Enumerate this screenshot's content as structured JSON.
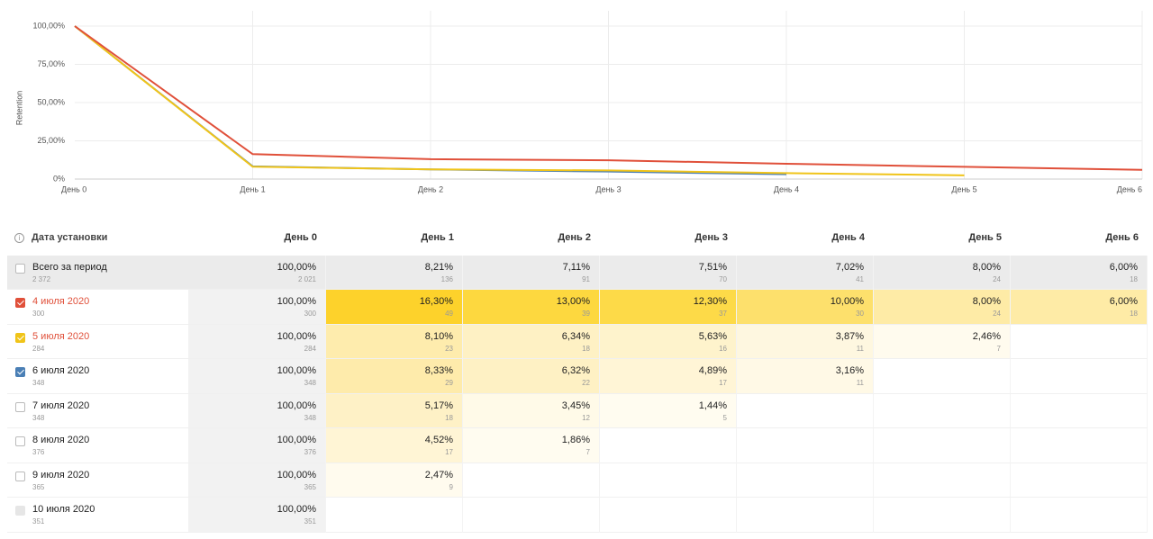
{
  "chart_data": {
    "type": "line",
    "y_label": "Retention",
    "categories": [
      "День 0",
      "День 1",
      "День 2",
      "День 3",
      "День 4",
      "День 5",
      "День 6"
    ],
    "series": [
      {
        "color": "#e0503a",
        "values": [
          100,
          16.3,
          13,
          12.3,
          10,
          8,
          6
        ]
      },
      {
        "color": "#f0c419",
        "values": [
          100,
          8.1,
          6.34,
          5.63,
          3.87,
          2.46,
          null
        ]
      },
      {
        "color": "#4a7fb5",
        "values": [
          100,
          8.33,
          6.32,
          4.89,
          3.16,
          null,
          null
        ]
      }
    ],
    "ylim": [
      0,
      100
    ],
    "yticks": [
      {
        "value": 0,
        "label": "0%"
      },
      {
        "value": 25,
        "label": "25,00%"
      },
      {
        "value": 50,
        "label": "50,00%"
      },
      {
        "value": 75,
        "label": "75,00%"
      },
      {
        "value": 100,
        "label": "100,00%"
      }
    ],
    "grid": true
  },
  "table": {
    "header": "Дата установки",
    "day0_bg": "#f2f2f2",
    "total_bg": "#ebebeb",
    "rows": [
      {
        "label": "Всего за период",
        "count": "2 372",
        "total": true,
        "checked": false,
        "cells": [
          {
            "pct": "100,00%",
            "n": "2 021"
          },
          {
            "pct": "8,21%",
            "n": "136"
          },
          {
            "pct": "7,11%",
            "n": "91"
          },
          {
            "pct": "7,51%",
            "n": "70"
          },
          {
            "pct": "7,02%",
            "n": "41"
          },
          {
            "pct": "8,00%",
            "n": "24"
          },
          {
            "pct": "6,00%",
            "n": "18"
          }
        ]
      },
      {
        "label": "4 июля 2020",
        "count": "300",
        "checked": true,
        "checkbox_color": "#e0503a",
        "label_color": "#e0503a",
        "cells": [
          {
            "pct": "100,00%",
            "n": "300"
          },
          {
            "pct": "16,30%",
            "n": "49",
            "bg": "#fdd22b"
          },
          {
            "pct": "13,00%",
            "n": "39",
            "bg": "#fdd83f"
          },
          {
            "pct": "12,30%",
            "n": "37",
            "bg": "#fdda48"
          },
          {
            "pct": "10,00%",
            "n": "30",
            "bg": "#fde06c"
          },
          {
            "pct": "8,00%",
            "n": "24",
            "bg": "#feeba6"
          },
          {
            "pct": "6,00%",
            "n": "18",
            "bg": "#feeba6"
          }
        ]
      },
      {
        "label": "5 июля 2020",
        "count": "284",
        "checked": true,
        "checkbox_color": "#f0c419",
        "label_color": "#e0503a",
        "cells": [
          {
            "pct": "100,00%",
            "n": "284"
          },
          {
            "pct": "8,10%",
            "n": "23",
            "bg": "#feecad"
          },
          {
            "pct": "6,34%",
            "n": "18",
            "bg": "#fef1c4"
          },
          {
            "pct": "5,63%",
            "n": "16",
            "bg": "#fef3cc"
          },
          {
            "pct": "3,87%",
            "n": "11",
            "bg": "#fef7e0"
          },
          {
            "pct": "2,46%",
            "n": "7",
            "bg": "#fffbee"
          }
        ]
      },
      {
        "label": "6 июля 2020",
        "count": "348",
        "checked": true,
        "checkbox_color": "#4a7fb5",
        "cells": [
          {
            "pct": "100,00%",
            "n": "348"
          },
          {
            "pct": "8,33%",
            "n": "29",
            "bg": "#feebab"
          },
          {
            "pct": "6,32%",
            "n": "22",
            "bg": "#fef1c4"
          },
          {
            "pct": "4,89%",
            "n": "17",
            "bg": "#fff5d6"
          },
          {
            "pct": "3,16%",
            "n": "11",
            "bg": "#fff9e6"
          }
        ]
      },
      {
        "label": "7 июля 2020",
        "count": "348",
        "checked": false,
        "cells": [
          {
            "pct": "100,00%",
            "n": "348"
          },
          {
            "pct": "5,17%",
            "n": "18",
            "bg": "#fef1c6"
          },
          {
            "pct": "3,45%",
            "n": "12",
            "bg": "#fffae8"
          },
          {
            "pct": "1,44%",
            "n": "5",
            "bg": "#fffcf0"
          }
        ]
      },
      {
        "label": "8 июля 2020",
        "count": "376",
        "checked": false,
        "cells": [
          {
            "pct": "100,00%",
            "n": "376"
          },
          {
            "pct": "4,52%",
            "n": "17",
            "bg": "#fff5d5"
          },
          {
            "pct": "1,86%",
            "n": "7",
            "bg": "#fffcf0"
          }
        ]
      },
      {
        "label": "9 июля 2020",
        "count": "365",
        "checked": false,
        "cells": [
          {
            "pct": "100,00%",
            "n": "365"
          },
          {
            "pct": "2,47%",
            "n": "9",
            "bg": "#fffbee"
          }
        ]
      },
      {
        "label": "10 июля 2020",
        "count": "351",
        "checked": false,
        "disabled": true,
        "cells": [
          {
            "pct": "100,00%",
            "n": "351"
          }
        ]
      }
    ]
  }
}
